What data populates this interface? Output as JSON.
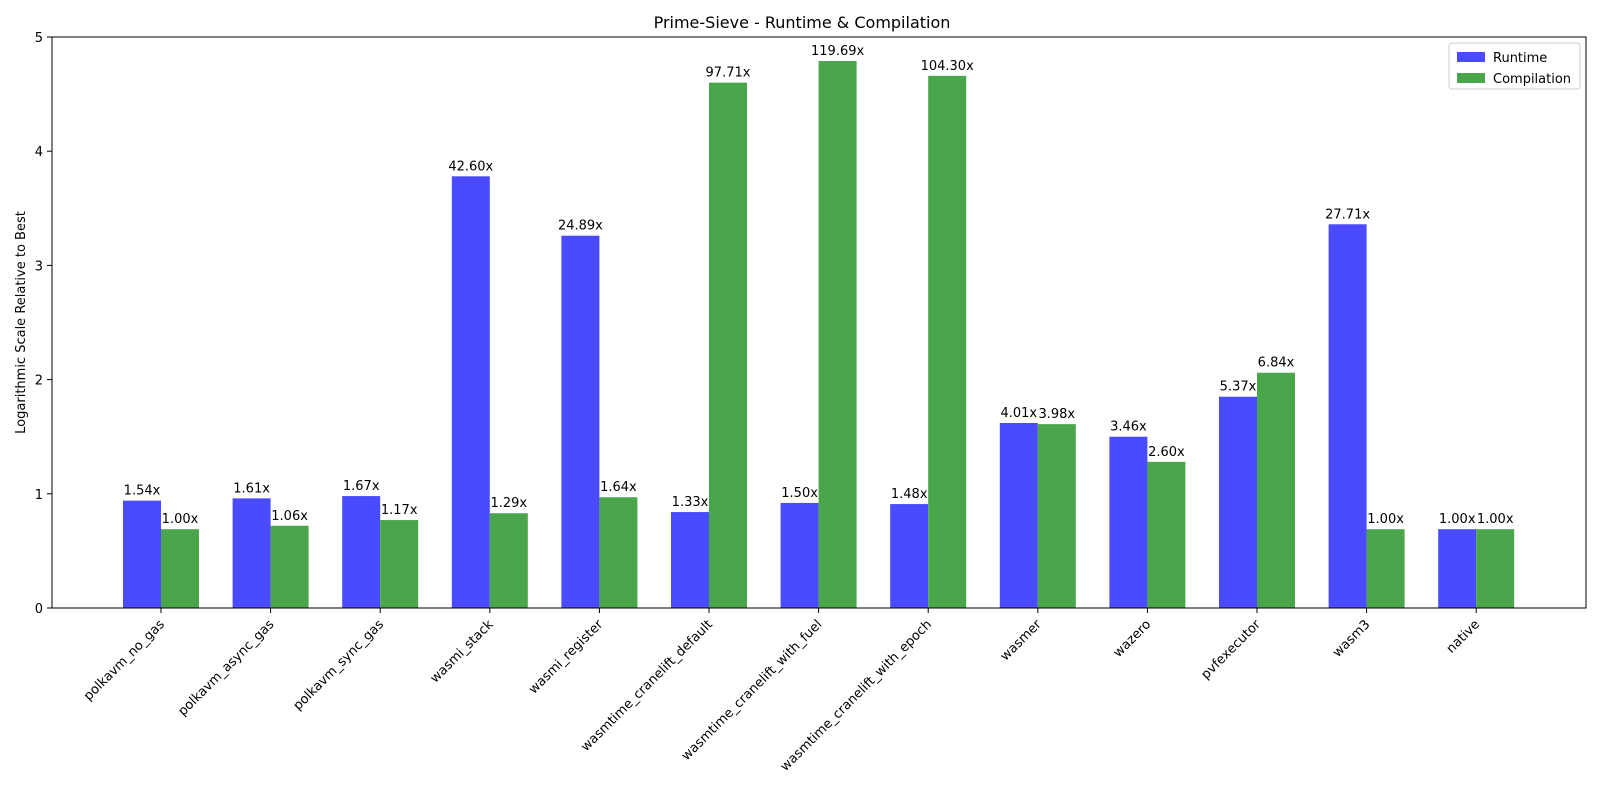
{
  "chart_data": {
    "type": "bar",
    "title": "Prime-Sieve - Runtime & Compilation",
    "xlabel": "",
    "ylabel": "Logarithmic Scale Relative to Best",
    "ylim": [
      0,
      5
    ],
    "yticks": [
      "0",
      "1",
      "2",
      "3",
      "4",
      "5"
    ],
    "grid": false,
    "legend_position": "top-right",
    "categories": [
      "polkavm_no_gas",
      "polkavm_async_gas",
      "polkavm_sync_gas",
      "wasmi_stack",
      "wasmi_register",
      "wasmtime_cranelift_default",
      "wasmtime_cranelift_with_fuel",
      "wasmtime_cranelift_with_epoch",
      "wasmer",
      "wazero",
      "pvfexecutor",
      "wasm3",
      "native"
    ],
    "series": [
      {
        "name": "Runtime",
        "color": "#4a4aff",
        "values": [
          0.94,
          0.96,
          0.98,
          3.78,
          3.26,
          0.84,
          0.92,
          0.91,
          1.62,
          1.5,
          1.85,
          3.36,
          0.69
        ],
        "labels": [
          "1.54x",
          "1.61x",
          "1.67x",
          "42.60x",
          "24.89x",
          "1.33x",
          "1.50x",
          "1.48x",
          "4.01x",
          "3.46x",
          "5.37x",
          "27.71x",
          "1.00x"
        ]
      },
      {
        "name": "Compilation",
        "color": "#4aa64a",
        "values": [
          0.69,
          0.72,
          0.77,
          0.83,
          0.97,
          4.6,
          4.79,
          4.66,
          1.61,
          1.28,
          2.06,
          0.69,
          0.69
        ],
        "labels": [
          "1.00x",
          "1.06x",
          "1.17x",
          "1.29x",
          "1.64x",
          "97.71x",
          "119.69x",
          "104.30x",
          "3.98x",
          "2.60x",
          "6.84x",
          "1.00x",
          "1.00x"
        ]
      }
    ]
  }
}
